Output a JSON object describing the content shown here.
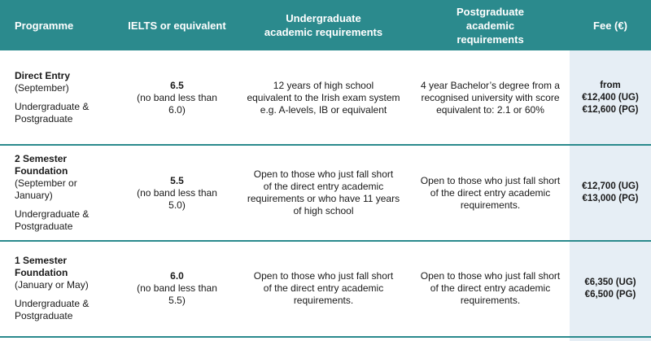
{
  "header": {
    "programme": "Programme",
    "ielts": "IELTS or equivalent",
    "ug": "Undergraduate academic requirements",
    "pg": "Postgraduate academic requirements",
    "fee": "Fee (€)"
  },
  "rows": [
    {
      "name": "Direct Entry",
      "when": "(September)",
      "level_1": "Undergraduate &",
      "level_2": "Postgraduate",
      "ielts_score": "6.5",
      "ielts_note_1": "(no band less than",
      "ielts_note_2": "6.0)",
      "ug_1": "12 years of high school",
      "ug_2": "equivalent to the Irish exam system",
      "ug_3": "e.g. A-levels, IB or equivalent",
      "ug_4": "",
      "pg_1": "4 year Bachelor’s degree from a",
      "pg_2": "recognised university with score",
      "pg_3": "equivalent to: 2.1 or 60%",
      "fee_1": "from",
      "fee_2": "€12,400 (UG)",
      "fee_3": "€12,600 (PG)"
    },
    {
      "name": "2 Semester Foundation",
      "when": "(September or January)",
      "level_1": "Undergraduate &",
      "level_2": "Postgraduate",
      "ielts_score": "5.5",
      "ielts_note_1": "(no band less than",
      "ielts_note_2": "5.0)",
      "ug_1": "Open to those who just fall short",
      "ug_2": "of the direct entry academic",
      "ug_3": "requirements or who have 11 years",
      "ug_4": "of high school",
      "pg_1": "Open to those who just fall short",
      "pg_2": "of the direct entry academic",
      "pg_3": "requirements.",
      "fee_1": "",
      "fee_2": "€12,700 (UG)",
      "fee_3": "€13,000 (PG)"
    },
    {
      "name": "1 Semester Foundation",
      "when": "(January or May)",
      "level_1": "Undergraduate &",
      "level_2": "Postgraduate",
      "ielts_score": "6.0",
      "ielts_note_1": "(no band less than",
      "ielts_note_2": "5.5)",
      "ug_1": "Open to those who just fall short",
      "ug_2": "of the direct entry academic",
      "ug_3": "requirements.",
      "ug_4": "",
      "pg_1": "Open to those who just fall short",
      "pg_2": "of the direct entry academic",
      "pg_3": "requirements.",
      "fee_1": "",
      "fee_2": "€6,350 (UG)",
      "fee_3": "€6,500 (PG)"
    }
  ],
  "colors": {
    "header_bg": "#2b8a8d",
    "fee_band_bg": "#e6eef5",
    "divider": "#2b8a8d"
  }
}
